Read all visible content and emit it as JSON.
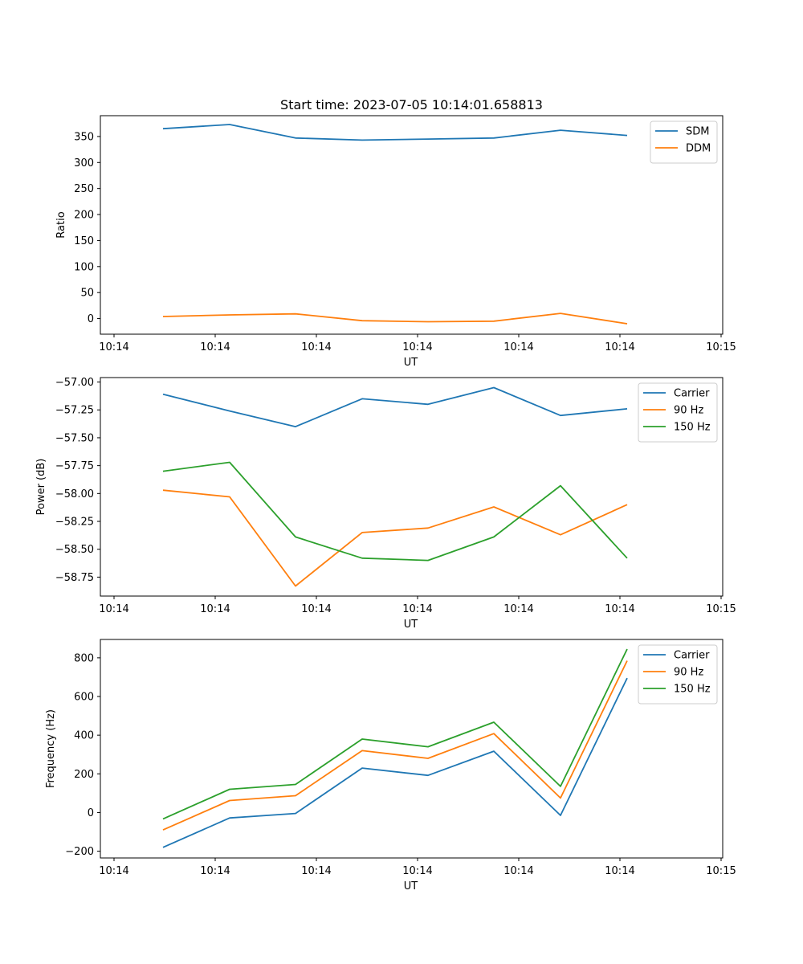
{
  "chart_data": [
    {
      "type": "line",
      "title": "Start time: 2023-07-05 10:14:01.658813",
      "xlabel": "UT",
      "ylabel": "Ratio",
      "x_tick_labels": [
        "10:14",
        "10:14",
        "10:14",
        "10:14",
        "10:14",
        "10:14",
        "10:15"
      ],
      "y_ticks": [
        0,
        50,
        100,
        150,
        200,
        250,
        300,
        350
      ],
      "ylim": [
        -30,
        390
      ],
      "legend_position": "top-right",
      "grid": false,
      "series": [
        {
          "name": "SDM",
          "color": "#1f77b4",
          "values": [
            365,
            373,
            347,
            343,
            345,
            347,
            362,
            352
          ]
        },
        {
          "name": "DDM",
          "color": "#ff7f0e",
          "values": [
            4,
            7,
            9,
            -4,
            -6,
            -5,
            10,
            -10
          ]
        }
      ]
    },
    {
      "type": "line",
      "title": "",
      "xlabel": "UT",
      "ylabel": "Power (dB)",
      "x_tick_labels": [
        "10:14",
        "10:14",
        "10:14",
        "10:14",
        "10:14",
        "10:14",
        "10:15"
      ],
      "y_ticks": [
        -58.75,
        -58.5,
        -58.25,
        -58.0,
        -57.75,
        -57.5,
        -57.25,
        -57.0
      ],
      "y_tick_labels": [
        "−58.75",
        "−58.50",
        "−58.25",
        "−58.00",
        "−57.75",
        "−57.50",
        "−57.25",
        "−57.00"
      ],
      "ylim": [
        -58.92,
        -56.96
      ],
      "legend_position": "top-right",
      "grid": false,
      "series": [
        {
          "name": "Carrier",
          "color": "#1f77b4",
          "values": [
            -57.11,
            -57.26,
            -57.4,
            -57.15,
            -57.2,
            -57.05,
            -57.3,
            -57.24
          ]
        },
        {
          "name": "90 Hz",
          "color": "#ff7f0e",
          "values": [
            -57.97,
            -58.03,
            -58.83,
            -58.35,
            -58.31,
            -58.12,
            -58.37,
            -58.1
          ]
        },
        {
          "name": "150 Hz",
          "color": "#2ca02c",
          "values": [
            -57.8,
            -57.72,
            -58.39,
            -58.58,
            -58.6,
            -58.39,
            -57.93,
            -58.58
          ]
        }
      ]
    },
    {
      "type": "line",
      "title": "",
      "xlabel": "UT",
      "ylabel": "Frequency (Hz)",
      "x_tick_labels": [
        "10:14",
        "10:14",
        "10:14",
        "10:14",
        "10:14",
        "10:14",
        "10:15"
      ],
      "y_ticks": [
        -200,
        0,
        200,
        400,
        600,
        800
      ],
      "y_tick_labels": [
        "−200",
        "0",
        "200",
        "400",
        "600",
        "800"
      ],
      "ylim": [
        -235,
        895
      ],
      "legend_position": "top-right",
      "grid": false,
      "series": [
        {
          "name": "Carrier",
          "color": "#1f77b4",
          "values": [
            -180,
            -28,
            -5,
            230,
            192,
            317,
            -15,
            695
          ]
        },
        {
          "name": "90 Hz",
          "color": "#ff7f0e",
          "values": [
            -90,
            62,
            87,
            320,
            280,
            408,
            75,
            785
          ]
        },
        {
          "name": "150 Hz",
          "color": "#2ca02c",
          "values": [
            -33,
            120,
            145,
            380,
            340,
            467,
            135,
            845
          ]
        }
      ]
    }
  ]
}
